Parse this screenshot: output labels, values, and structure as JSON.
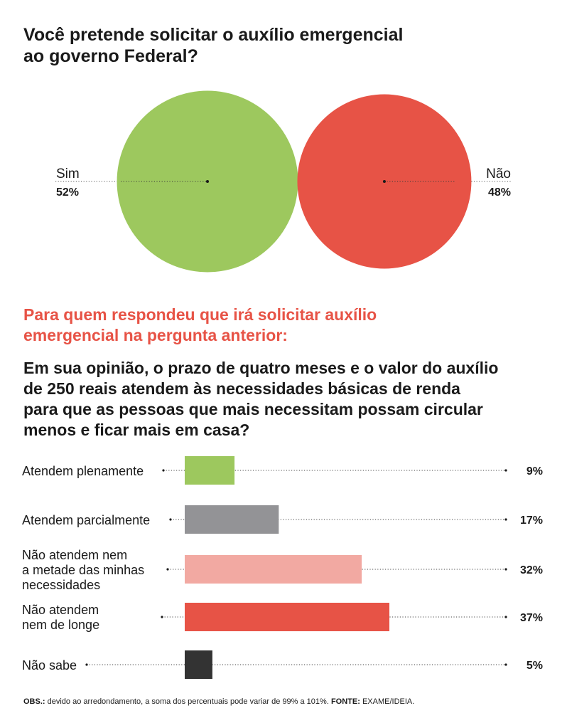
{
  "question1": {
    "title_line1": "Você pretende solicitar o auxílio emergencial",
    "title_line2": "ao governo Federal?"
  },
  "question2": {
    "intro_line1": "Para quem respondeu que irá solicitar auxílio",
    "intro_line2": "emergencial na pergunta anterior:",
    "title_line1": "Em sua opinião, o prazo de quatro meses e o valor do auxílio",
    "title_line2": "de 250 reais atendem às necessidades básicas de renda",
    "title_line3": "para que as pessoas que mais necessitam possam circular",
    "title_line4": "menos e ficar mais em casa?"
  },
  "footnote": {
    "obs_label": "OBS.:",
    "obs_text": " devido ao arredondamento, a soma dos percentuais pode variar de 99% a 101%. ",
    "source_label": "FONTE:",
    "source_text": " EXAME/IDEIA."
  },
  "chart_data": [
    {
      "type": "pie",
      "categories": [
        "Sim",
        "Não"
      ],
      "values": [
        52,
        48
      ],
      "value_labels": [
        "52%",
        "48%"
      ],
      "colors": [
        "#9dc85e",
        "#e75346"
      ]
    },
    {
      "type": "bar",
      "orientation": "horizontal",
      "categories": [
        [
          "Atendem plenamente"
        ],
        [
          "Atendem parcialmente"
        ],
        [
          "Não atendem nem",
          "a metade das minhas",
          "necessidades"
        ],
        [
          "Não atendem",
          "nem de longe"
        ],
        [
          "Não sabe"
        ]
      ],
      "values": [
        9,
        17,
        32,
        37,
        5
      ],
      "value_labels": [
        "9%",
        "17%",
        "32%",
        "37%",
        "5%"
      ],
      "colors": [
        "#9dc85e",
        "#939396",
        "#f2a9a2",
        "#e75346",
        "#333333"
      ]
    }
  ]
}
